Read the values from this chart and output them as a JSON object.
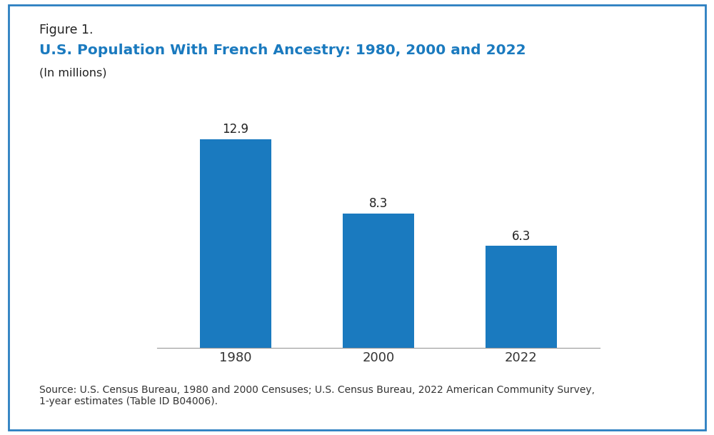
{
  "figure_label": "Figure 1.",
  "title": "U.S. Population With French Ancestry: 1980, 2000 and 2022",
  "subtitle": "(In millions)",
  "categories": [
    "1980",
    "2000",
    "2022"
  ],
  "values": [
    12.9,
    8.3,
    6.3
  ],
  "bar_color": "#1a7abf",
  "title_color": "#1a7abf",
  "figure_label_color": "#222222",
  "subtitle_color": "#222222",
  "source_text": "Source: U.S. Census Bureau, 1980 and 2000 Censuses; U.S. Census Bureau, 2022 American Community Survey,\n1-year estimates (Table ID B04006).",
  "background_color": "#ffffff",
  "border_color": "#2b7fc1",
  "ylim": [
    0,
    14.5
  ],
  "bar_width": 0.5,
  "figsize": [
    10.0,
    6.09
  ],
  "dpi": 100
}
